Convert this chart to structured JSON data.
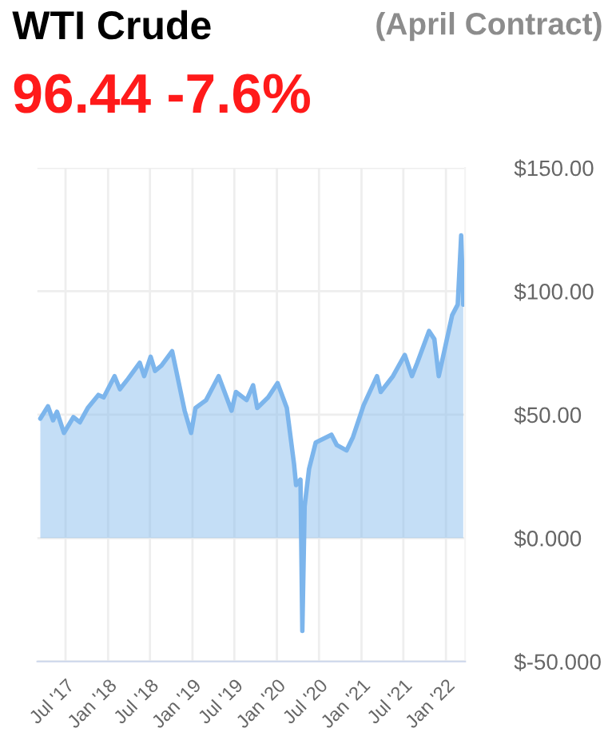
{
  "chart_data": {
    "type": "area",
    "title": "WTI Crude",
    "subtitle": "(April Contract)",
    "annotations": [
      "96.44 -7.6%"
    ],
    "x": [
      "2017-03-14",
      "2017-04-16",
      "2017-05-08",
      "2017-05-25",
      "2017-06-24",
      "2017-08-04",
      "2017-09-01",
      "2017-10-05",
      "2017-11-20",
      "2017-12-13",
      "2018-01-29",
      "2018-02-21",
      "2018-03-28",
      "2018-05-18",
      "2018-06-06",
      "2018-07-04",
      "2018-07-23",
      "2018-08-20",
      "2018-10-05",
      "2018-11-28",
      "2018-12-26",
      "2019-01-14",
      "2019-03-01",
      "2019-04-24",
      "2019-06-19",
      "2019-07-08",
      "2019-08-23",
      "2019-09-20",
      "2019-10-08",
      "2019-11-24",
      "2020-01-04",
      "2020-02-13",
      "2020-03-15",
      "2020-03-24",
      "2020-04-12",
      "2020-04-20",
      "2020-04-30",
      "2020-05-19",
      "2020-06-17",
      "2020-08-24",
      "2020-09-16",
      "2020-10-28",
      "2020-11-25",
      "2021-01-10",
      "2021-03-09",
      "2021-03-25",
      "2021-05-17",
      "2021-07-07",
      "2021-08-07",
      "2021-08-30",
      "2021-10-20",
      "2021-11-12",
      "2021-12-01",
      "2021-12-19",
      "2022-01-28",
      "2022-02-21",
      "2022-03-08",
      "2022-03-17"
    ],
    "series": [
      {
        "color": "#7cb5ec",
        "values": [
          48.4,
          53.4,
          47.7,
          51.2,
          42.6,
          49,
          46.9,
          52.7,
          58,
          57,
          65.6,
          60.3,
          64.5,
          71,
          65.6,
          73.5,
          67.7,
          69.9,
          75.7,
          51.6,
          42.6,
          52.7,
          55.9,
          65.6,
          51.6,
          59.2,
          55.9,
          61.9,
          52.7,
          57,
          62.8,
          52.7,
          30.1,
          21.5,
          23.7,
          -37.6,
          12.9,
          28,
          38.7,
          41.9,
          37.7,
          35.5,
          40.9,
          53.8,
          65.6,
          59.2,
          65.6,
          74.2,
          65.6,
          71,
          83.9,
          80.6,
          65.6,
          73.2,
          90.3,
          94.6,
          122.6,
          94.6
        ]
      }
    ],
    "xlim": [
      "2017-03-01",
      "2022-03-25"
    ],
    "xticks": [
      {
        "value": "2017-07-01",
        "label": "Jul '17"
      },
      {
        "value": "2018-01-01",
        "label": "Jan '18"
      },
      {
        "value": "2018-07-01",
        "label": "Jul '18"
      },
      {
        "value": "2019-01-01",
        "label": "Jan '19"
      },
      {
        "value": "2019-07-01",
        "label": "Jul '19"
      },
      {
        "value": "2020-01-01",
        "label": "Jan '20"
      },
      {
        "value": "2020-07-01",
        "label": "Jul '20"
      },
      {
        "value": "2021-01-01",
        "label": "Jan '21"
      },
      {
        "value": "2021-07-01",
        "label": "Jul '21"
      },
      {
        "value": "2022-01-01",
        "label": "Jan '22"
      }
    ],
    "ylim": [
      -50,
      150
    ],
    "yticks": [
      {
        "value": -50,
        "label": "$-50.000"
      },
      {
        "value": 0,
        "label": "$0.000"
      },
      {
        "value": 50,
        "label": "$50.00"
      },
      {
        "value": 100,
        "label": "$100.00"
      },
      {
        "value": 150,
        "label": "$150.00"
      }
    ],
    "grid": true,
    "legend": false,
    "marker": "none",
    "line_style": "solid"
  }
}
